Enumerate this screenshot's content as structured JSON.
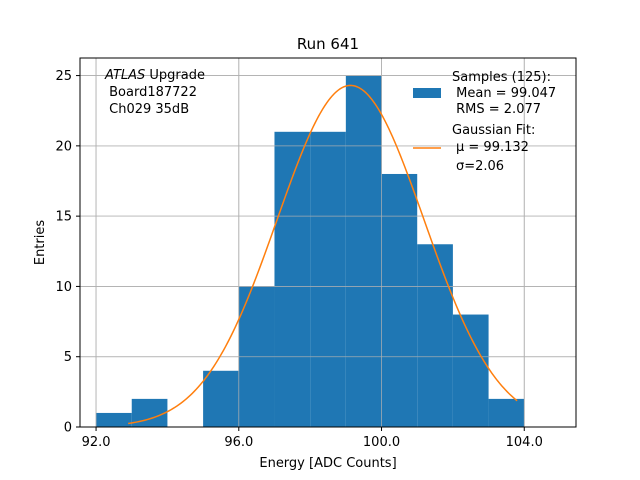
{
  "chart_data": {
    "type": "bar",
    "title": "Run 641",
    "xlabel": "Energy [ADC Counts]",
    "ylabel": "Entries",
    "xlim": [
      91.55,
      105.45
    ],
    "ylim": [
      0,
      26.25
    ],
    "x_ticks": [
      "92.0",
      "96.0",
      "100.0",
      "104.0"
    ],
    "x_tick_values": [
      92,
      96,
      100,
      104
    ],
    "y_ticks": [
      "0",
      "5",
      "10",
      "15",
      "20",
      "25"
    ],
    "y_tick_values": [
      0,
      5,
      10,
      15,
      20,
      25
    ],
    "grid": true,
    "bins": [
      {
        "x0": 92,
        "x1": 93,
        "count": 1
      },
      {
        "x0": 93,
        "x1": 94,
        "count": 2
      },
      {
        "x0": 94,
        "x1": 95,
        "count": 0
      },
      {
        "x0": 95,
        "x1": 96,
        "count": 4
      },
      {
        "x0": 96,
        "x1": 97,
        "count": 10
      },
      {
        "x0": 97,
        "x1": 98,
        "count": 21
      },
      {
        "x0": 98,
        "x1": 99,
        "count": 21
      },
      {
        "x0": 99,
        "x1": 100,
        "count": 25
      },
      {
        "x0": 100,
        "x1": 101,
        "count": 18
      },
      {
        "x0": 101,
        "x1": 102,
        "count": 13
      },
      {
        "x0": 102,
        "x1": 103,
        "count": 8
      },
      {
        "x0": 103,
        "x1": 104,
        "count": 2
      }
    ],
    "hist_color": "#1f77b4",
    "fit": {
      "mu": 99.132,
      "sigma": 2.06,
      "amplitude": 24.3,
      "x_range": [
        92.9,
        103.8
      ],
      "color": "#ff7f0e"
    },
    "annotation": {
      "line1_italic": "ATLAS",
      "line1_rest": " Upgrade",
      "line2": " Board187722",
      "line3": " Ch029 35dB"
    },
    "legend": {
      "placement": "top-right",
      "hist_line1": "Samples (125):",
      "hist_line2": " Mean = 99.047",
      "hist_line3": " RMS = 2.077",
      "fit_line1": "Gaussian Fit:",
      "fit_line2": "μ = 99.132",
      "fit_line3": "σ=2.06"
    }
  }
}
